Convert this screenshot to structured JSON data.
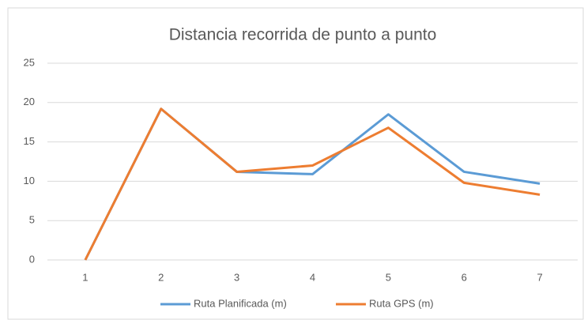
{
  "chart_data": {
    "type": "line",
    "title": "Distancia recorrida de punto a punto",
    "categories": [
      "1",
      "2",
      "3",
      "4",
      "5",
      "6",
      "7"
    ],
    "series": [
      {
        "name": "Ruta Planificada (m)",
        "color": "#5b9bd5",
        "values": [
          0,
          19.2,
          11.2,
          10.9,
          18.5,
          11.2,
          9.7
        ]
      },
      {
        "name": "Ruta GPS (m)",
        "color": "#ed7d31",
        "values": [
          0,
          19.2,
          11.2,
          12.0,
          16.8,
          9.8,
          8.3
        ]
      }
    ],
    "ylim": [
      0,
      25
    ],
    "yticks": [
      0,
      5,
      10,
      15,
      20,
      25
    ],
    "grid": true,
    "legend": "bottom"
  }
}
